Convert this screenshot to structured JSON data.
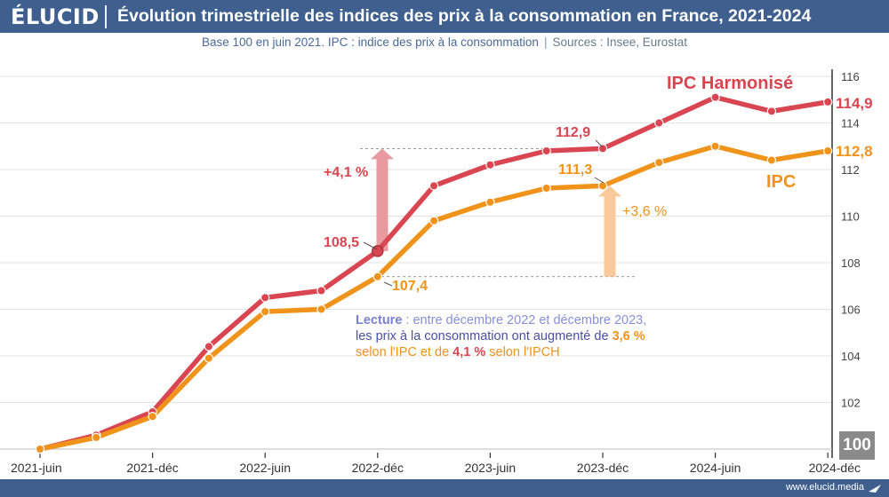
{
  "header": {
    "logo": "ÉLUCID",
    "title": "Évolution trimestrielle des indices des prix à la consommation en France, 2021-2024"
  },
  "subtitle": {
    "text": "Base 100 en juin 2021. IPC : indice des prix à la consommation",
    "separator": "|",
    "sources": "Sources : Insee, Eurostat"
  },
  "footer": {
    "url": "www.elucid.media",
    "icon": "arrow-swoosh-icon"
  },
  "base_label": "100",
  "lecture": {
    "lead": "Lecture",
    "line1": " : entre décembre 2022 et décembre 2023,",
    "line2_a": "les prix à la consommation ont augmenté de ",
    "line2_b": "3,6 %",
    "line3_a": "selon l'IPC et de ",
    "line3_b": "4,1 %",
    "line3_c": " selon l'IPCH"
  },
  "annotations": {
    "ipch_change": "+4,1 %",
    "ipc_change": "+3,6 %",
    "ipch_start": "108,5",
    "ipch_end": "112,9",
    "ipc_start": "107,4",
    "ipc_end": "111,3",
    "ipch_last": "114,9",
    "ipc_last": "112,8"
  },
  "colors": {
    "header": "#3f5f8f",
    "ipch": "#d94550",
    "ipc": "#f0931a",
    "ipch_arrow": "#e89aa0",
    "ipc_arrow": "#f8c99a",
    "grid": "#e3e3e3"
  },
  "chart_data": {
    "type": "line",
    "x": [
      "2021-juin",
      "2021-sept",
      "2021-déc",
      "2022-mars",
      "2022-juin",
      "2022-sept",
      "2022-déc",
      "2023-mars",
      "2023-juin",
      "2023-sept",
      "2023-déc",
      "2024-mars",
      "2024-juin",
      "2024-sept",
      "2024-déc"
    ],
    "x_tick_labels": [
      "2021-juin",
      "2021-déc",
      "2022-juin",
      "2022-déc",
      "2023-juin",
      "2023-déc",
      "2024-juin",
      "2024-déc"
    ],
    "series": [
      {
        "name": "IPC Harmonisé",
        "values": [
          100,
          100.6,
          101.6,
          104.4,
          106.5,
          106.8,
          108.5,
          111.3,
          112.2,
          112.8,
          112.9,
          114.0,
          115.1,
          114.5,
          114.9
        ]
      },
      {
        "name": "IPC",
        "values": [
          100,
          100.5,
          101.4,
          103.9,
          105.9,
          106.0,
          107.4,
          109.8,
          110.6,
          111.2,
          111.3,
          112.3,
          113.0,
          112.4,
          112.8
        ]
      }
    ],
    "y_ticks": [
      102,
      104,
      106,
      108,
      110,
      112,
      114,
      116
    ],
    "ylim": [
      100,
      116
    ],
    "grid": true,
    "legend": "inline labels at right end of lines"
  }
}
